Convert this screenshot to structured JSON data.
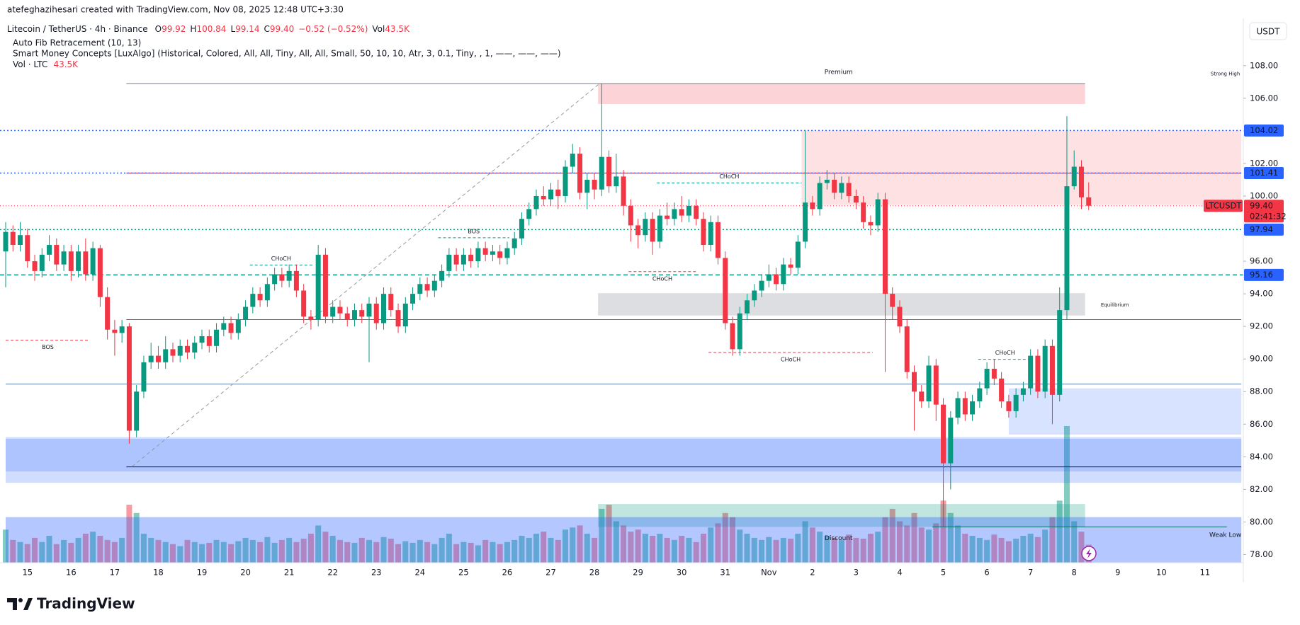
{
  "header": {
    "credit": "atefeghazihesari created with TradingView.com, Nov 08, 2025 12:48 UTC+3:30",
    "brand": "TradingView"
  },
  "chart_data": {
    "type": "candlestick",
    "symbol": "Litecoin / TetherUS · 4h · Binance",
    "legend_prefixes": [
      "O",
      "H",
      "L",
      "C"
    ],
    "legend_values": [
      99.92,
      100.84,
      99.14,
      99.4
    ],
    "legend_value_labels": [
      "99.92",
      "100.84",
      "99.14",
      "99.40"
    ],
    "change_label": "−0.52 (−0.52%)",
    "volume_prefix": "Vol",
    "last_volume_label": "43.5K",
    "indicators": [
      "Auto Fib Retracement (10, 13)",
      "Smart Money Concepts [LuxAlgo] (Historical, Colored, All, All, Tiny, All, All, Small, 50, 10, 10, Atr, 3, 0.1, Tiny, , 1, ——, ——, ——)"
    ],
    "volume_indicator": "Vol · LTC",
    "currency": "USDT",
    "up_color": "#089981",
    "down_color": "#f23645",
    "open": [
      96.6,
      97.8,
      97,
      97.6,
      96,
      95.4,
      96.4,
      97,
      95.8,
      96.6,
      95.4,
      96.6,
      95.2,
      96.8,
      93.8,
      91.8,
      91.6,
      92,
      85.6,
      88,
      89.8,
      90.2,
      89.8,
      90.6,
      90.2,
      90.8,
      90.4,
      91,
      91.4,
      90.8,
      91.8,
      92.2,
      91.6,
      92.4,
      93.2,
      94,
      93.6,
      94.6,
      95.2,
      94.8,
      95.4,
      94.2,
      92.6,
      92.4,
      96.4,
      92.6,
      93.2,
      92.8,
      92.4,
      93,
      92.6,
      93.4,
      92.2,
      94,
      93,
      92,
      93.4,
      94,
      94.6,
      94.2,
      94.8,
      95.4,
      96.4,
      95.8,
      96.4,
      96,
      96.8,
      96.4,
      96.6,
      96.2,
      96.8,
      97.4,
      98.6,
      99.2,
      100,
      99.8,
      100.4,
      100,
      101.8,
      102.6,
      100.2,
      101,
      100.4,
      102.4,
      100.6,
      101.2,
      99.4,
      98.2,
      97.6,
      98.6,
      97.2,
      98.8,
      98.6,
      99.2,
      98.8,
      99.4,
      98.6,
      97,
      98.4,
      96.2,
      92.2,
      90.6,
      92.8,
      93.6,
      94.2,
      94.8,
      95.2,
      94.6,
      95.8,
      95.6,
      97.2,
      99.6,
      99.2,
      100.8,
      101,
      100.2,
      100.8,
      100,
      99.6,
      98.4,
      98.2,
      99.8,
      94,
      93.2,
      92,
      89.2,
      88,
      87.4,
      89.6,
      87.2,
      83.6,
      86.4,
      87.6,
      86.6,
      87.4,
      88.2,
      89.4,
      88.8,
      87.4,
      86.8,
      87.8,
      88.2,
      90.2,
      88,
      90.8,
      87.8,
      93,
      100.6,
      101.8,
      99.92
    ],
    "high": [
      98.4,
      98.2,
      98.4,
      98,
      96.4,
      96.8,
      97.6,
      97.4,
      97,
      97,
      97,
      97.4,
      97.2,
      97,
      94.4,
      92.4,
      92.4,
      92.2,
      88.4,
      90.2,
      91,
      90.8,
      91.4,
      91,
      91.2,
      91.2,
      91.4,
      91.8,
      91.8,
      92.2,
      92.6,
      92.6,
      92.8,
      93.6,
      94.4,
      94.4,
      95,
      95.6,
      95.6,
      95.8,
      95.8,
      94.6,
      93,
      97,
      96.8,
      93.6,
      93.6,
      93.2,
      93.4,
      93.4,
      93.8,
      93.8,
      94.4,
      94.4,
      93.4,
      93.8,
      94.4,
      95,
      95,
      95.2,
      95.8,
      96.8,
      96.8,
      96.8,
      96.8,
      97.2,
      97.2,
      97,
      97,
      97.2,
      97.8,
      99,
      99.6,
      100.4,
      100.6,
      100.8,
      101,
      102.2,
      103.2,
      103,
      101.4,
      101.4,
      106.9,
      102.8,
      102.6,
      101.6,
      99.8,
      98.6,
      99,
      99,
      99.2,
      99.6,
      99.6,
      100,
      99.8,
      99.8,
      99,
      98.8,
      98.8,
      96.6,
      92.6,
      93.2,
      94,
      94.6,
      95.2,
      95.8,
      95.6,
      96.2,
      96.2,
      97.6,
      104.02,
      100,
      101.2,
      101.6,
      101.4,
      101.2,
      101.2,
      100.4,
      100,
      98.8,
      100.2,
      100.2,
      94.4,
      93.6,
      92.4,
      89.6,
      88.4,
      90.2,
      90,
      87.6,
      86.8,
      88,
      88,
      87.8,
      88.6,
      89.8,
      90,
      89.2,
      87.8,
      88.2,
      88.6,
      90.6,
      90.6,
      91.2,
      91.2,
      94.4,
      104.9,
      102.8,
      102.2,
      100.84
    ],
    "low": [
      94.4,
      96.6,
      96.6,
      95.6,
      94.8,
      95,
      96,
      95.4,
      95.4,
      94.8,
      95,
      94.8,
      94.8,
      93.2,
      91.2,
      90.2,
      91,
      84.8,
      85.2,
      87.6,
      89.4,
      89.4,
      89.4,
      89.8,
      89.8,
      90,
      90,
      90.6,
      90.4,
      90.4,
      91.4,
      91.2,
      91.2,
      92,
      92.8,
      93.2,
      93.2,
      94.2,
      94.4,
      94.4,
      93.8,
      92.2,
      91.8,
      92,
      92.2,
      92.2,
      92.4,
      92,
      92,
      92.2,
      89.8,
      91.8,
      91.8,
      92.6,
      91.6,
      91.6,
      93,
      93.6,
      93.8,
      93.8,
      94.4,
      95,
      95.4,
      95.4,
      95.6,
      95.6,
      96,
      96,
      95.8,
      95.8,
      96.4,
      97,
      98.2,
      98.8,
      99.4,
      99.4,
      99.2,
      99.6,
      101.4,
      99.8,
      99.2,
      99.8,
      100,
      100.2,
      100.2,
      98.8,
      97.2,
      96.8,
      97.2,
      96.4,
      96.8,
      98.2,
      98.2,
      98.4,
      98.4,
      98.2,
      96.6,
      96.6,
      95.8,
      91.8,
      90.2,
      90.2,
      92.4,
      93.2,
      93.8,
      94.4,
      94.2,
      94.2,
      95.2,
      95.2,
      96.8,
      98.8,
      98.8,
      100.4,
      99.8,
      99.8,
      99.6,
      99.2,
      98,
      97.6,
      97.8,
      89.2,
      92.4,
      91.6,
      88.8,
      85.6,
      87,
      87,
      86.2,
      79.7,
      82,
      86,
      86.2,
      86.2,
      87,
      87.8,
      88.4,
      87,
      86.4,
      86.4,
      87.4,
      87.8,
      87.6,
      87.6,
      86,
      87.4,
      92.4,
      100.4,
      99.2,
      99.14
    ],
    "close": [
      97.8,
      97,
      97.6,
      96,
      95.4,
      96.4,
      97,
      95.8,
      96.6,
      95.4,
      96.6,
      95.2,
      96.8,
      93.8,
      91.8,
      91.6,
      92,
      85.6,
      88,
      89.8,
      90.2,
      89.8,
      90.6,
      90.2,
      90.8,
      90.4,
      91,
      91.4,
      90.8,
      91.8,
      92.2,
      91.6,
      92.4,
      93.2,
      94,
      93.6,
      94.6,
      95.2,
      94.8,
      95.4,
      94.2,
      92.6,
      92.4,
      96.4,
      92.6,
      93.2,
      92.8,
      92.4,
      93,
      92.6,
      93.4,
      92.2,
      94,
      93,
      92,
      93.4,
      94,
      94.6,
      94.2,
      94.8,
      95.4,
      96.4,
      95.8,
      96.4,
      96,
      96.8,
      96.4,
      96.6,
      96.2,
      96.8,
      97.4,
      98.6,
      99.2,
      100,
      99.8,
      100.4,
      100,
      101.8,
      102.6,
      100.2,
      101,
      100.4,
      102.4,
      100.6,
      101.2,
      99.4,
      98.2,
      97.6,
      98.6,
      97.2,
      98.8,
      98.6,
      99.2,
      98.8,
      99.4,
      98.6,
      97,
      98.4,
      96.2,
      92.2,
      90.6,
      92.8,
      93.6,
      94.2,
      94.8,
      95.2,
      94.6,
      95.8,
      95.6,
      97.2,
      99.6,
      99.2,
      100.8,
      101,
      100.2,
      100.8,
      100,
      99.6,
      98.4,
      98.2,
      99.8,
      94,
      93.2,
      92,
      89.2,
      88,
      87.4,
      89.6,
      87.2,
      83.6,
      86.4,
      87.6,
      86.6,
      87.4,
      88.2,
      89.4,
      88.8,
      87.4,
      86.8,
      87.8,
      88.2,
      90.2,
      88,
      90.8,
      87.8,
      93,
      100.6,
      101.8,
      99.92,
      99.4
    ],
    "volume": [
      80,
      55,
      50,
      45,
      60,
      50,
      65,
      45,
      55,
      48,
      60,
      70,
      75,
      65,
      55,
      50,
      60,
      140,
      120,
      70,
      60,
      55,
      50,
      45,
      40,
      55,
      50,
      45,
      48,
      55,
      50,
      45,
      52,
      60,
      55,
      50,
      62,
      48,
      55,
      60,
      50,
      58,
      70,
      90,
      75,
      65,
      55,
      50,
      48,
      60,
      55,
      50,
      62,
      58,
      45,
      52,
      48,
      55,
      50,
      45,
      60,
      70,
      45,
      50,
      48,
      42,
      55,
      50,
      45,
      50,
      55,
      65,
      60,
      70,
      75,
      60,
      55,
      80,
      85,
      90,
      70,
      60,
      130,
      140,
      100,
      90,
      75,
      80,
      70,
      65,
      70,
      60,
      55,
      65,
      60,
      50,
      70,
      85,
      95,
      120,
      110,
      80,
      70,
      60,
      55,
      62,
      55,
      60,
      58,
      70,
      100,
      85,
      75,
      65,
      60,
      55,
      68,
      60,
      58,
      70,
      75,
      110,
      130,
      100,
      90,
      120,
      85,
      80,
      95,
      150,
      120,
      90,
      70,
      65,
      60,
      55,
      68,
      60,
      52,
      58,
      65,
      70,
      62,
      80,
      110,
      150,
      330,
      100,
      75,
      43.5
    ],
    "ylim": [
      77.5,
      110.9
    ],
    "yticks": [
      {
        "value": 78,
        "label": "78.00"
      },
      {
        "value": 80,
        "label": "80.00"
      },
      {
        "value": 82,
        "label": "82.00"
      },
      {
        "value": 84,
        "label": "84.00"
      },
      {
        "value": 86,
        "label": "86.00"
      },
      {
        "value": 88,
        "label": "88.00"
      },
      {
        "value": 90,
        "label": "90.00"
      },
      {
        "value": 92,
        "label": "92.00"
      },
      {
        "value": 94,
        "label": "94.00"
      },
      {
        "value": 96,
        "label": "96.00"
      },
      {
        "value": 98,
        "label": "98.00"
      },
      {
        "value": 100,
        "label": "100.00"
      },
      {
        "value": 102,
        "label": "102.00"
      },
      {
        "value": 104,
        "label": "104.00"
      },
      {
        "value": 106,
        "label": "106.00"
      },
      {
        "value": 108,
        "label": "108.00"
      }
    ],
    "x_labels": [
      "15",
      "16",
      "17",
      "18",
      "19",
      "20",
      "21",
      "22",
      "23",
      "24",
      "25",
      "26",
      "27",
      "28",
      "29",
      "30",
      "31",
      "Nov",
      "2",
      "3",
      "4",
      "5",
      "6",
      "7",
      "8",
      "9",
      "10",
      "11"
    ],
    "zones": [
      {
        "top": 106.9,
        "bottom": 105.65,
        "from": 81.5,
        "to": 148.5,
        "color": "rgba(242,54,69,0.22)"
      },
      {
        "top": 104.02,
        "bottom": 99.47,
        "from": 109.5,
        "to": 170,
        "color": "rgba(242,54,69,0.15)"
      },
      {
        "top": 94.04,
        "bottom": 92.67,
        "from": 81.5,
        "to": 148.5,
        "color": "rgba(120,123,134,0.25)"
      },
      {
        "top": 81.1,
        "bottom": 79.7,
        "from": 81.5,
        "to": 148.5,
        "color": "rgba(8,153,129,0.25)"
      },
      {
        "top": 85.2,
        "bottom": 82.4,
        "from": 0,
        "to": 170,
        "color": "rgba(41,98,255,0.22)"
      },
      {
        "top": 85.1,
        "bottom": 83.1,
        "from": 0,
        "to": 170,
        "color": "rgba(41,98,255,0.2)"
      },
      {
        "top": 88.2,
        "bottom": 85.36,
        "from": 138,
        "to": 170,
        "color": "rgba(41,98,255,0.18)"
      },
      {
        "top": 80.3,
        "bottom": 77.5,
        "from": 0,
        "to": 170,
        "color": "rgba(41,98,255,0.35)"
      }
    ],
    "lines": [
      {
        "value": 106.9,
        "from": 16.6,
        "to": 148.5,
        "color": "#787b86",
        "style": "solid"
      },
      {
        "value": 92.42,
        "from": 16.6,
        "to": 170,
        "color": "#089981",
        "style": "solid"
      },
      {
        "value": 88.46,
        "from": 0,
        "to": 170,
        "color": "#5b7ea5",
        "style": "solid"
      },
      {
        "value": 83.38,
        "from": 16.6,
        "to": 170,
        "color": "#131722",
        "style": "solid"
      },
      {
        "value": 79.7,
        "from": 127.5,
        "to": 168,
        "color": "#0b6e66",
        "style": "solid"
      },
      {
        "value": 101.41,
        "from": 16.6,
        "to": 170,
        "color": "#b22833",
        "style": "solid"
      }
    ],
    "fib": {
      "from": [
        17.4,
        83.4
      ],
      "to": [
        81.7,
        106.9
      ],
      "color": "#9598a1"
    },
    "levels": [
      {
        "value": 104.02,
        "line_color": "#2962ff",
        "label_color": "#2962ff",
        "style": "dotted"
      },
      {
        "value": 101.41,
        "line_color": "#2962ff",
        "label_color": "#2962ff",
        "style": "dotted"
      },
      {
        "value": 97.94,
        "line_color": "#089981",
        "label_color": "#2962ff",
        "style": "dotted"
      },
      {
        "value": 95.16,
        "line_color": "#089981",
        "label_color": "#2962ff",
        "style": "dashed"
      }
    ],
    "last": {
      "symbol": "LTCUSDT",
      "value": 99.4,
      "label": "99.40",
      "countdown": "02:41:32",
      "color": "#f23645"
    },
    "structure": [
      {
        "text": "BOS",
        "color": "#f23645",
        "value": 91.15,
        "from": 0,
        "to": 11.6,
        "position": "below"
      },
      {
        "text": "CHoCH",
        "color": "#089981",
        "value": 95.77,
        "from": 33.6,
        "to": 42.2,
        "position": "above"
      },
      {
        "text": "BOS",
        "color": "#089981",
        "value": 97.44,
        "from": 59.5,
        "to": 69.3,
        "position": "above"
      },
      {
        "text": "CHoCH",
        "color": "#089981",
        "value": 100.8,
        "from": 89.6,
        "to": 109.5,
        "position": "above"
      },
      {
        "text": "CHoCH",
        "color": "#f23645",
        "value": 95.36,
        "from": 85.7,
        "to": 95,
        "position": "below"
      },
      {
        "text": "CHoCH",
        "color": "#f23645",
        "value": 90.4,
        "from": 96.7,
        "to": 119.3,
        "position": "below"
      },
      {
        "text": "CHoCH",
        "color": "#089981",
        "value": 89.98,
        "from": 133.8,
        "to": 141.2,
        "position": "above"
      }
    ],
    "zone_labels": [
      {
        "text": "Premium",
        "i": 114.6,
        "price": 107.6,
        "color": "#f23645"
      },
      {
        "text": "Equilibrium",
        "i": 152.6,
        "price": 93.3,
        "color": "#9598a1"
      },
      {
        "text": "Discount",
        "i": 114.6,
        "price": 79.0,
        "color": "#2962ff"
      },
      {
        "text": "Strong High",
        "i": 167.8,
        "price": 107.5,
        "color": "#f23645"
      },
      {
        "text": "Weak Low",
        "i": 167.8,
        "price": 79.2,
        "color": "#089981"
      }
    ]
  }
}
